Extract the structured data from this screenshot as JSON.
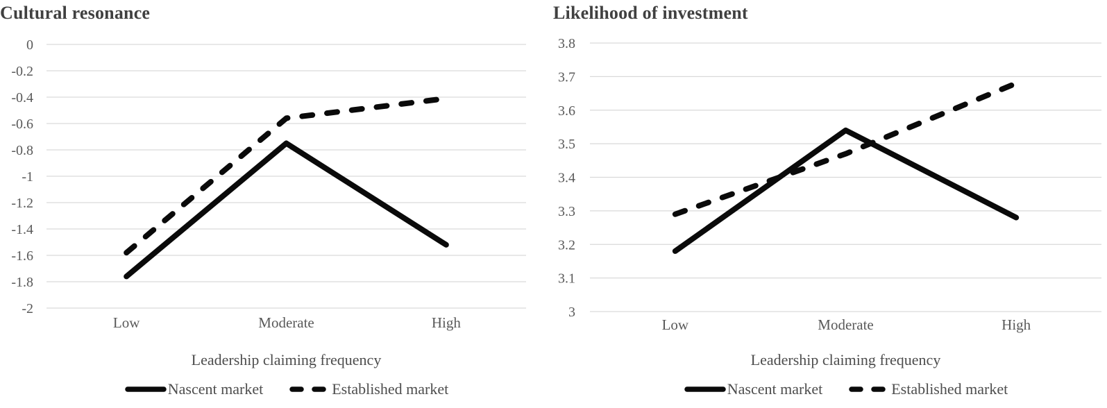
{
  "colors": {
    "line": "#0a0a0a",
    "grid": "#d9d9d9",
    "tick_text": "#595959",
    "title_text": "#404040",
    "label_text": "#4d4d4d",
    "background": "#ffffff"
  },
  "chart_data": [
    {
      "type": "line",
      "title": "Cultural resonance",
      "xlabel": "Leadership claiming frequency",
      "ylabel": "",
      "categories": [
        "Low",
        "Moderate",
        "High"
      ],
      "yticks": [
        "0",
        "-0.2",
        "-0.4",
        "-0.6",
        "-0.8",
        "-1",
        "-1.2",
        "-1.4",
        "-1.6",
        "-1.8",
        "-2"
      ],
      "ylim": [
        -2,
        0
      ],
      "grid": true,
      "legend_position": "bottom",
      "series": [
        {
          "name": "Nascent market",
          "line_style": "solid",
          "values": [
            -1.76,
            -0.75,
            -1.52
          ]
        },
        {
          "name": "Established market",
          "line_style": "dashed",
          "values": [
            -1.58,
            -0.56,
            -0.41
          ]
        }
      ]
    },
    {
      "type": "line",
      "title": "Likelihood of investment",
      "xlabel": "Leadership claiming frequency",
      "ylabel": "",
      "categories": [
        "Low",
        "Moderate",
        "High"
      ],
      "yticks": [
        "3.8",
        "3.7",
        "3.6",
        "3.5",
        "3.4",
        "3.3",
        "3.2",
        "3.1",
        "3"
      ],
      "ylim": [
        3,
        3.8
      ],
      "grid": true,
      "legend_position": "bottom",
      "series": [
        {
          "name": "Nascent market",
          "line_style": "solid",
          "values": [
            3.18,
            3.54,
            3.28
          ]
        },
        {
          "name": "Established market",
          "line_style": "dashed",
          "values": [
            3.29,
            3.47,
            3.68
          ]
        }
      ]
    }
  ]
}
